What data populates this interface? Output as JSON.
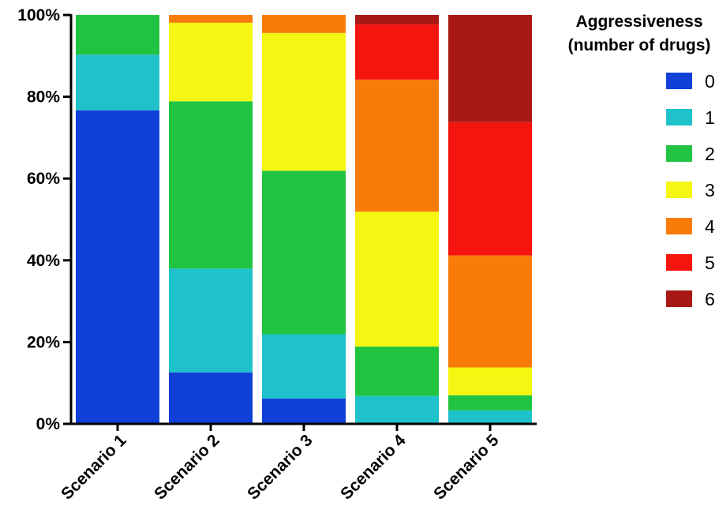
{
  "chart_data": {
    "type": "bar",
    "stacked": true,
    "normalized": true,
    "categories": [
      "Scenario 1",
      "Scenario 2",
      "Scenario 3",
      "Scenario 4",
      "Scenario 5"
    ],
    "series": [
      {
        "name": "0",
        "color": "#1040d8",
        "values": [
          76.7,
          12.6,
          6.2,
          0.0,
          0.0
        ]
      },
      {
        "name": "1",
        "color": "#1fc2cb",
        "values": [
          13.6,
          25.4,
          15.7,
          6.8,
          3.3
        ]
      },
      {
        "name": "2",
        "color": "#20c441",
        "values": [
          9.7,
          40.9,
          40.0,
          12.1,
          3.7
        ]
      },
      {
        "name": "3",
        "color": "#f5f712",
        "values": [
          0.0,
          19.2,
          33.7,
          33.0,
          6.8
        ]
      },
      {
        "name": "4",
        "color": "#f97c0a",
        "values": [
          0.0,
          1.9,
          4.4,
          32.3,
          27.4
        ]
      },
      {
        "name": "5",
        "color": "#f5150e",
        "values": [
          0.0,
          0.0,
          0.0,
          13.5,
          32.6
        ]
      },
      {
        "name": "6",
        "color": "#a81915",
        "values": [
          0.0,
          0.0,
          0.0,
          2.3,
          26.2
        ]
      }
    ],
    "yticks": [
      "0%",
      "20%",
      "40%",
      "60%",
      "80%",
      "100%"
    ],
    "ylim": [
      0,
      100
    ],
    "legend_title": [
      "Aggressiveness",
      "(number of drugs)"
    ],
    "legend_position": "right",
    "grid": false
  }
}
